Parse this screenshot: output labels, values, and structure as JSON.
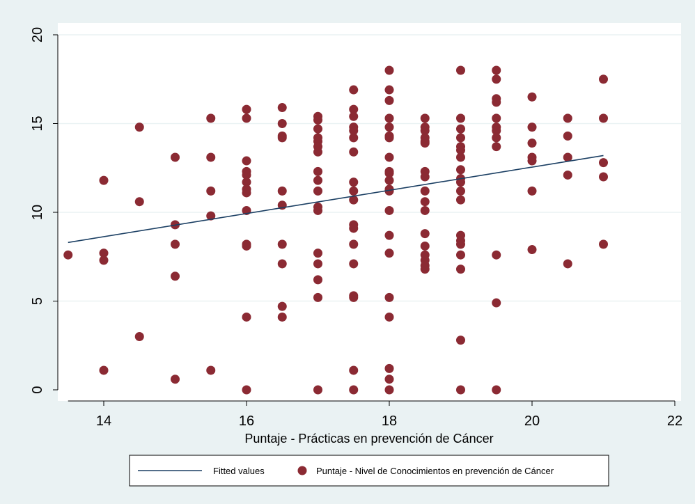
{
  "chart_data": {
    "type": "scatter",
    "title": "",
    "xlabel": "Puntaje - Prácticas en prevención de Cáncer",
    "ylabel": "",
    "xlim": [
      13.5,
      22
    ],
    "ylim": [
      0,
      20
    ],
    "xticks": [
      14,
      16,
      18,
      20,
      22
    ],
    "yticks": [
      0,
      5,
      10,
      15,
      20
    ],
    "grid": "horizontal",
    "legend_position": "bottom",
    "colors": {
      "points": "#8b2a33",
      "line": "#1b3f63",
      "plot_background": "#ffffff",
      "outer_background": "#eaf2f3",
      "grid": "#eaf2f3"
    },
    "series": [
      {
        "name": "Fitted values",
        "type": "line",
        "x": [
          13.5,
          21
        ],
        "y": [
          8.3,
          13.2
        ]
      },
      {
        "name": "Puntaje - Nivel de Conocimientos en prevención de Cáncer",
        "type": "scatter",
        "x": [
          13.5,
          14,
          14,
          14,
          14,
          14.5,
          14.5,
          14.5,
          15,
          15,
          15,
          15,
          15,
          15.5,
          15.5,
          15.5,
          15.5,
          15.5,
          16,
          16,
          16,
          16,
          16,
          16,
          16,
          16,
          16,
          16,
          16,
          16,
          16,
          16.5,
          16.5,
          16.5,
          16.5,
          16.5,
          16.5,
          16.5,
          16.5,
          16.5,
          16.5,
          17,
          17,
          17,
          17,
          17,
          17,
          17,
          17,
          17,
          17,
          17,
          17,
          17,
          17,
          17,
          17,
          17,
          17.5,
          17.5,
          17.5,
          17.5,
          17.5,
          17.5,
          17.5,
          17.5,
          17.5,
          17.5,
          17.5,
          17.5,
          17.5,
          17.5,
          17.5,
          17.5,
          17.5,
          17.5,
          18,
          18,
          18,
          18,
          18,
          18,
          18,
          18,
          18,
          18,
          18,
          18,
          18,
          18,
          18,
          18,
          18,
          18,
          18,
          18,
          18,
          18.5,
          18.5,
          18.5,
          18.5,
          18.5,
          18.5,
          18.5,
          18.5,
          18.5,
          18.5,
          18.5,
          18.5,
          18.5,
          18.5,
          18.5,
          18.5,
          18.5,
          19,
          19,
          19,
          19,
          19,
          19,
          19,
          19,
          19,
          19,
          19,
          19,
          19,
          19,
          19,
          19,
          19,
          19,
          19,
          19.5,
          19.5,
          19.5,
          19.5,
          19.5,
          19.5,
          19.5,
          19.5,
          19.5,
          19.5,
          19.5,
          19.5,
          20,
          20,
          20,
          20,
          20,
          20,
          20,
          20.5,
          20.5,
          20.5,
          20.5,
          20.5,
          21,
          21,
          21,
          21,
          21
        ],
        "y": [
          7.6,
          11.8,
          7.7,
          7.3,
          1.1,
          14.8,
          10.6,
          3.0,
          13.1,
          9.3,
          8.2,
          6.4,
          0.6,
          15.3,
          13.1,
          11.2,
          9.8,
          1.1,
          15.8,
          15.3,
          12.9,
          12.3,
          12.1,
          11.7,
          11.3,
          11.1,
          10.1,
          8.2,
          8.1,
          4.1,
          0.0,
          15.9,
          15.0,
          14.3,
          14.2,
          11.2,
          10.4,
          8.2,
          7.1,
          4.7,
          4.1,
          15.4,
          15.2,
          14.7,
          14.2,
          14.0,
          13.7,
          13.4,
          12.3,
          11.8,
          11.2,
          10.3,
          10.1,
          7.7,
          7.1,
          6.2,
          5.2,
          0.0,
          16.9,
          15.8,
          15.4,
          14.8,
          14.6,
          14.2,
          13.4,
          11.7,
          11.2,
          10.7,
          9.3,
          9.1,
          8.2,
          7.1,
          5.3,
          5.2,
          1.1,
          0.0,
          18.0,
          16.9,
          16.3,
          15.3,
          14.8,
          14.3,
          14.2,
          13.1,
          12.3,
          12.2,
          11.8,
          11.3,
          11.2,
          10.1,
          8.7,
          7.7,
          5.2,
          4.1,
          1.2,
          0.6,
          0.0,
          15.3,
          14.8,
          14.6,
          14.2,
          14.0,
          13.9,
          12.3,
          12.0,
          11.2,
          10.6,
          10.1,
          8.8,
          8.1,
          7.6,
          7.3,
          7.0,
          6.8,
          18.0,
          15.3,
          14.7,
          14.2,
          13.7,
          13.5,
          13.1,
          12.4,
          11.9,
          11.7,
          11.2,
          10.7,
          8.7,
          8.4,
          8.2,
          7.6,
          6.8,
          2.8,
          0.0,
          18.0,
          17.5,
          16.4,
          16.2,
          15.3,
          14.8,
          14.6,
          14.2,
          13.7,
          7.6,
          4.9,
          0.0,
          16.5,
          14.8,
          13.9,
          13.1,
          12.9,
          11.2,
          7.9,
          15.3,
          14.3,
          13.1,
          12.1,
          7.1,
          17.5,
          15.3,
          12.8,
          12.0,
          8.2
        ]
      }
    ]
  }
}
